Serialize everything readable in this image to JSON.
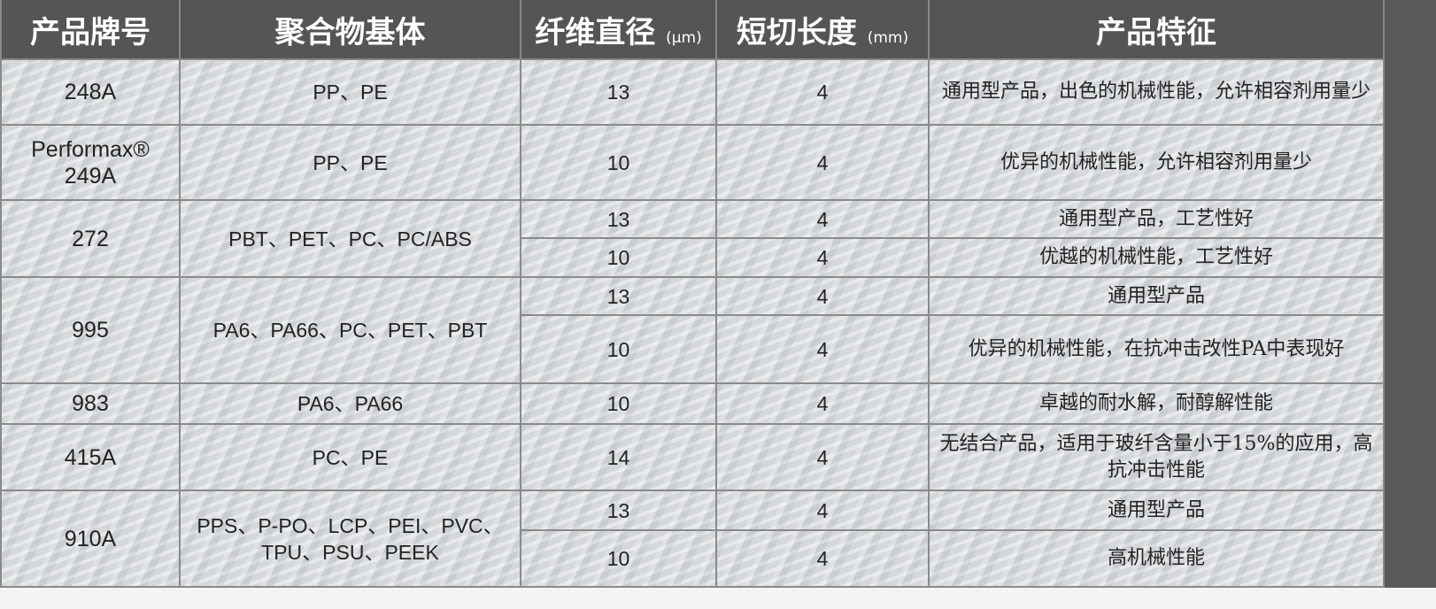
{
  "header": {
    "col1": "产品牌号",
    "col2": "聚合物基体",
    "col3": "纤维直径",
    "col3_unit": "(μm)",
    "col4": "短切长度",
    "col4_unit": "(mm)",
    "col5": "产品特征"
  },
  "products": [
    {
      "id": "248A",
      "polymer": "PP、PE",
      "rows": [
        {
          "diameter": "13",
          "length": "4",
          "feature": "通用型产品，出色的机械性能，允许相容剂用量少"
        }
      ]
    },
    {
      "id": "Performax® 249A",
      "polymer": "PP、PE",
      "rows": [
        {
          "diameter": "10",
          "length": "4",
          "feature": "优异的机械性能，允许相容剂用量少"
        }
      ]
    },
    {
      "id": "272",
      "polymer": "PBT、PET、PC、PC/ABS",
      "rows": [
        {
          "diameter": "13",
          "length": "4",
          "feature": "通用型产品，工艺性好"
        },
        {
          "diameter": "10",
          "length": "4",
          "feature": "优越的机械性能，工艺性好"
        }
      ]
    },
    {
      "id": "995",
      "polymer": "PA6、PA66、PC、PET、PBT",
      "rows": [
        {
          "diameter": "13",
          "length": "4",
          "feature": "通用型产品"
        },
        {
          "diameter": "10",
          "length": "4",
          "feature": "优异的机械性能，在抗冲击改性PA中表现好"
        }
      ]
    },
    {
      "id": "983",
      "polymer": "PA6、PA66",
      "rows": [
        {
          "diameter": "10",
          "length": "4",
          "feature": "卓越的耐水解，耐醇解性能"
        }
      ]
    },
    {
      "id": "415A",
      "polymer": "PC、PE",
      "rows": [
        {
          "diameter": "14",
          "length": "4",
          "feature": "无结合产品，适用于玻纤含量小于15%的应用，高抗冲击性能"
        }
      ]
    },
    {
      "id": "910A",
      "polymer": "PPS、P-PO、LCP、PEI、PVC、TPU、PSU、PEEK",
      "rows": [
        {
          "diameter": "13",
          "length": "4",
          "feature": "通用型产品"
        },
        {
          "diameter": "10",
          "length": "4",
          "feature": "高机械性能"
        }
      ]
    }
  ]
}
